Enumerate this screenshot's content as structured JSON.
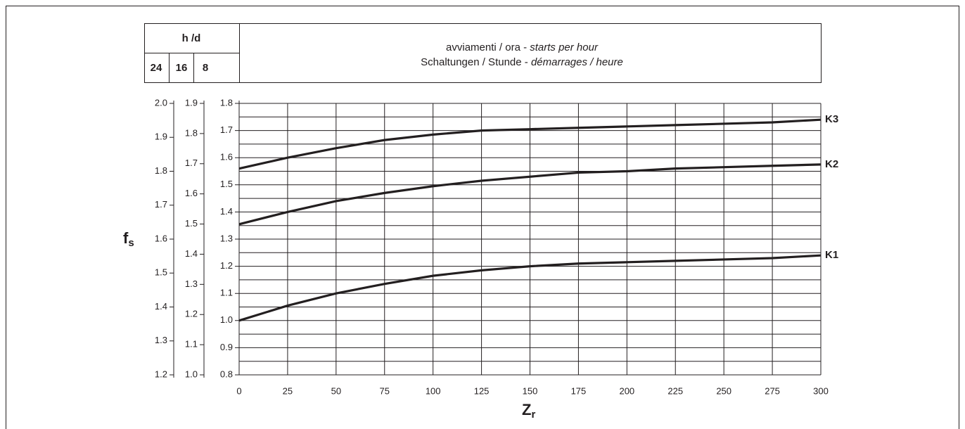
{
  "chart_data": {
    "type": "line",
    "header": {
      "title": "h /d",
      "columns": [
        "24",
        "16",
        "8"
      ],
      "text_lines": [
        [
          "avviamenti / ora - ",
          "starts per hour"
        ],
        [
          "Schaltungen / Stunde - ",
          "démarrages / heure"
        ]
      ]
    },
    "ylabel": "f",
    "ylabel_sub": "s",
    "xlabel": "Z",
    "xlabel_sub": "r",
    "x": [
      0,
      25,
      50,
      75,
      100,
      125,
      150,
      175,
      200,
      225,
      250,
      275,
      300
    ],
    "xlim": [
      0,
      300
    ],
    "xticks": [
      0,
      25,
      50,
      75,
      100,
      125,
      150,
      175,
      200,
      225,
      250,
      275,
      300
    ],
    "ylim": [
      0.8,
      1.8
    ],
    "yticks": [
      0.8,
      0.9,
      {
        "value": 1,
        "label": "1.0"
      },
      1.1,
      1.2,
      1.3,
      1.4,
      1.5,
      1.6,
      1.7,
      1.8
    ],
    "extra_axes": [
      {
        "ylim": [
          1.2,
          2.0
        ],
        "yticks": [
          1.2,
          1.3,
          1.4,
          1.5,
          1.6,
          1.7,
          1.8,
          1.9,
          {
            "value": 2,
            "label": "2.0"
          }
        ]
      },
      {
        "ylim": [
          1.0,
          1.9
        ],
        "yticks": [
          {
            "value": 1,
            "label": "1.0"
          },
          1.1,
          1.2,
          1.3,
          1.4,
          1.5,
          1.6,
          1.7,
          1.8,
          1.9
        ]
      }
    ],
    "grid": true,
    "color": "#231f20",
    "series": [
      {
        "name": "K3",
        "values": [
          1.56,
          1.6,
          1.635,
          1.665,
          1.685,
          1.7,
          1.705,
          1.71,
          1.715,
          1.72,
          1.725,
          1.73,
          1.74
        ]
      },
      {
        "name": "K2",
        "values": [
          1.355,
          1.4,
          1.44,
          1.47,
          1.495,
          1.515,
          1.53,
          1.545,
          1.55,
          1.56,
          1.565,
          1.57,
          1.575
        ]
      },
      {
        "name": "K1",
        "values": [
          1.0,
          1.055,
          1.1,
          1.135,
          1.165,
          1.185,
          1.2,
          1.21,
          1.215,
          1.22,
          1.225,
          1.23,
          1.24
        ]
      }
    ]
  }
}
